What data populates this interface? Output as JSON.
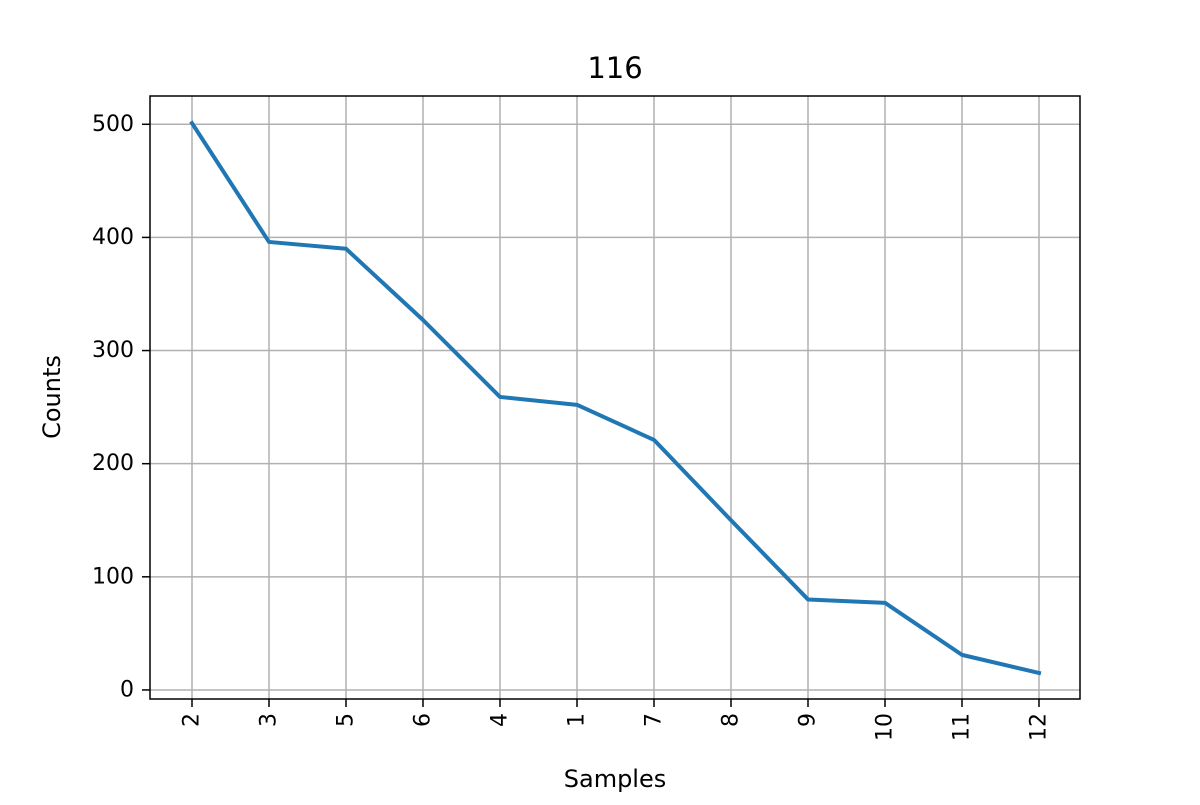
{
  "chart_data": {
    "type": "line",
    "title": "116",
    "xlabel": "Samples",
    "ylabel": "Counts",
    "categories": [
      "2",
      "3",
      "5",
      "6",
      "4",
      "1",
      "7",
      "8",
      "9",
      "10",
      "11",
      "12"
    ],
    "series": [
      {
        "values": [
          501,
          396,
          390,
          327,
          259,
          252,
          221,
          150,
          80,
          77,
          31,
          15
        ],
        "color": "#1f77b4"
      }
    ],
    "yticks": [
      0,
      100,
      200,
      300,
      400,
      500
    ],
    "ylim": [
      -8,
      525
    ],
    "grid": true,
    "grid_color": "#b0b0b0"
  }
}
